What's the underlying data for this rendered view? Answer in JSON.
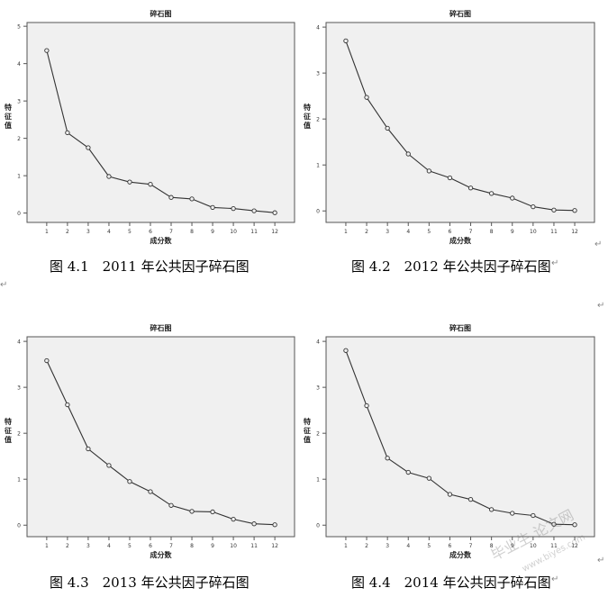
{
  "chart_data": [
    {
      "type": "line",
      "title": "碎石图",
      "xlabel": "成分数",
      "ylabel": "特征值",
      "x": [
        1,
        2,
        3,
        4,
        5,
        6,
        7,
        8,
        9,
        10,
        11,
        12
      ],
      "values": [
        4.35,
        2.15,
        1.75,
        0.98,
        0.83,
        0.77,
        0.42,
        0.38,
        0.15,
        0.12,
        0.06,
        0.01
      ],
      "yticks": [
        0,
        1,
        2,
        3,
        4,
        5
      ],
      "ylim": [
        -0.25,
        5.1
      ],
      "caption": "图 4.1　2011 年公共因子碎石图",
      "grid": false
    },
    {
      "type": "line",
      "title": "碎石图",
      "xlabel": "成分数",
      "ylabel": "特征值",
      "x": [
        1,
        2,
        3,
        4,
        5,
        6,
        7,
        8,
        9,
        10,
        11,
        12
      ],
      "values": [
        3.7,
        2.47,
        1.8,
        1.24,
        0.87,
        0.72,
        0.5,
        0.38,
        0.28,
        0.09,
        0.02,
        0.01
      ],
      "yticks": [
        0,
        1,
        2,
        3,
        4
      ],
      "ylim": [
        -0.25,
        4.1
      ],
      "caption": "图 4.2　2012 年公共因子碎石图",
      "grid": false
    },
    {
      "type": "line",
      "title": "碎石图",
      "xlabel": "成分数",
      "ylabel": "特征值",
      "x": [
        1,
        2,
        3,
        4,
        5,
        6,
        7,
        8,
        9,
        10,
        11,
        12
      ],
      "values": [
        3.58,
        2.62,
        1.66,
        1.3,
        0.95,
        0.73,
        0.43,
        0.3,
        0.29,
        0.13,
        0.03,
        0.01
      ],
      "yticks": [
        0,
        1,
        2,
        3,
        4
      ],
      "ylim": [
        -0.25,
        4.1
      ],
      "caption": "图 4.3　2013 年公共因子碎石图",
      "grid": false
    },
    {
      "type": "line",
      "title": "碎石图",
      "xlabel": "成分数",
      "ylabel": "特征值",
      "x": [
        1,
        2,
        3,
        4,
        5,
        6,
        7,
        8,
        9,
        10,
        11,
        12
      ],
      "values": [
        3.8,
        2.6,
        1.46,
        1.15,
        1.02,
        0.67,
        0.56,
        0.34,
        0.26,
        0.21,
        0.02,
        0.01
      ],
      "yticks": [
        0,
        1,
        2,
        3,
        4
      ],
      "ylim": [
        -0.25,
        4.1
      ],
      "caption": "图 4.4　2014 年公共因子碎石图",
      "grid": false
    }
  ],
  "marks": {
    "return": "↵",
    "small": "↵"
  },
  "watermark": {
    "text": "毕业生  论文网",
    "url": "www.biyes.com"
  }
}
